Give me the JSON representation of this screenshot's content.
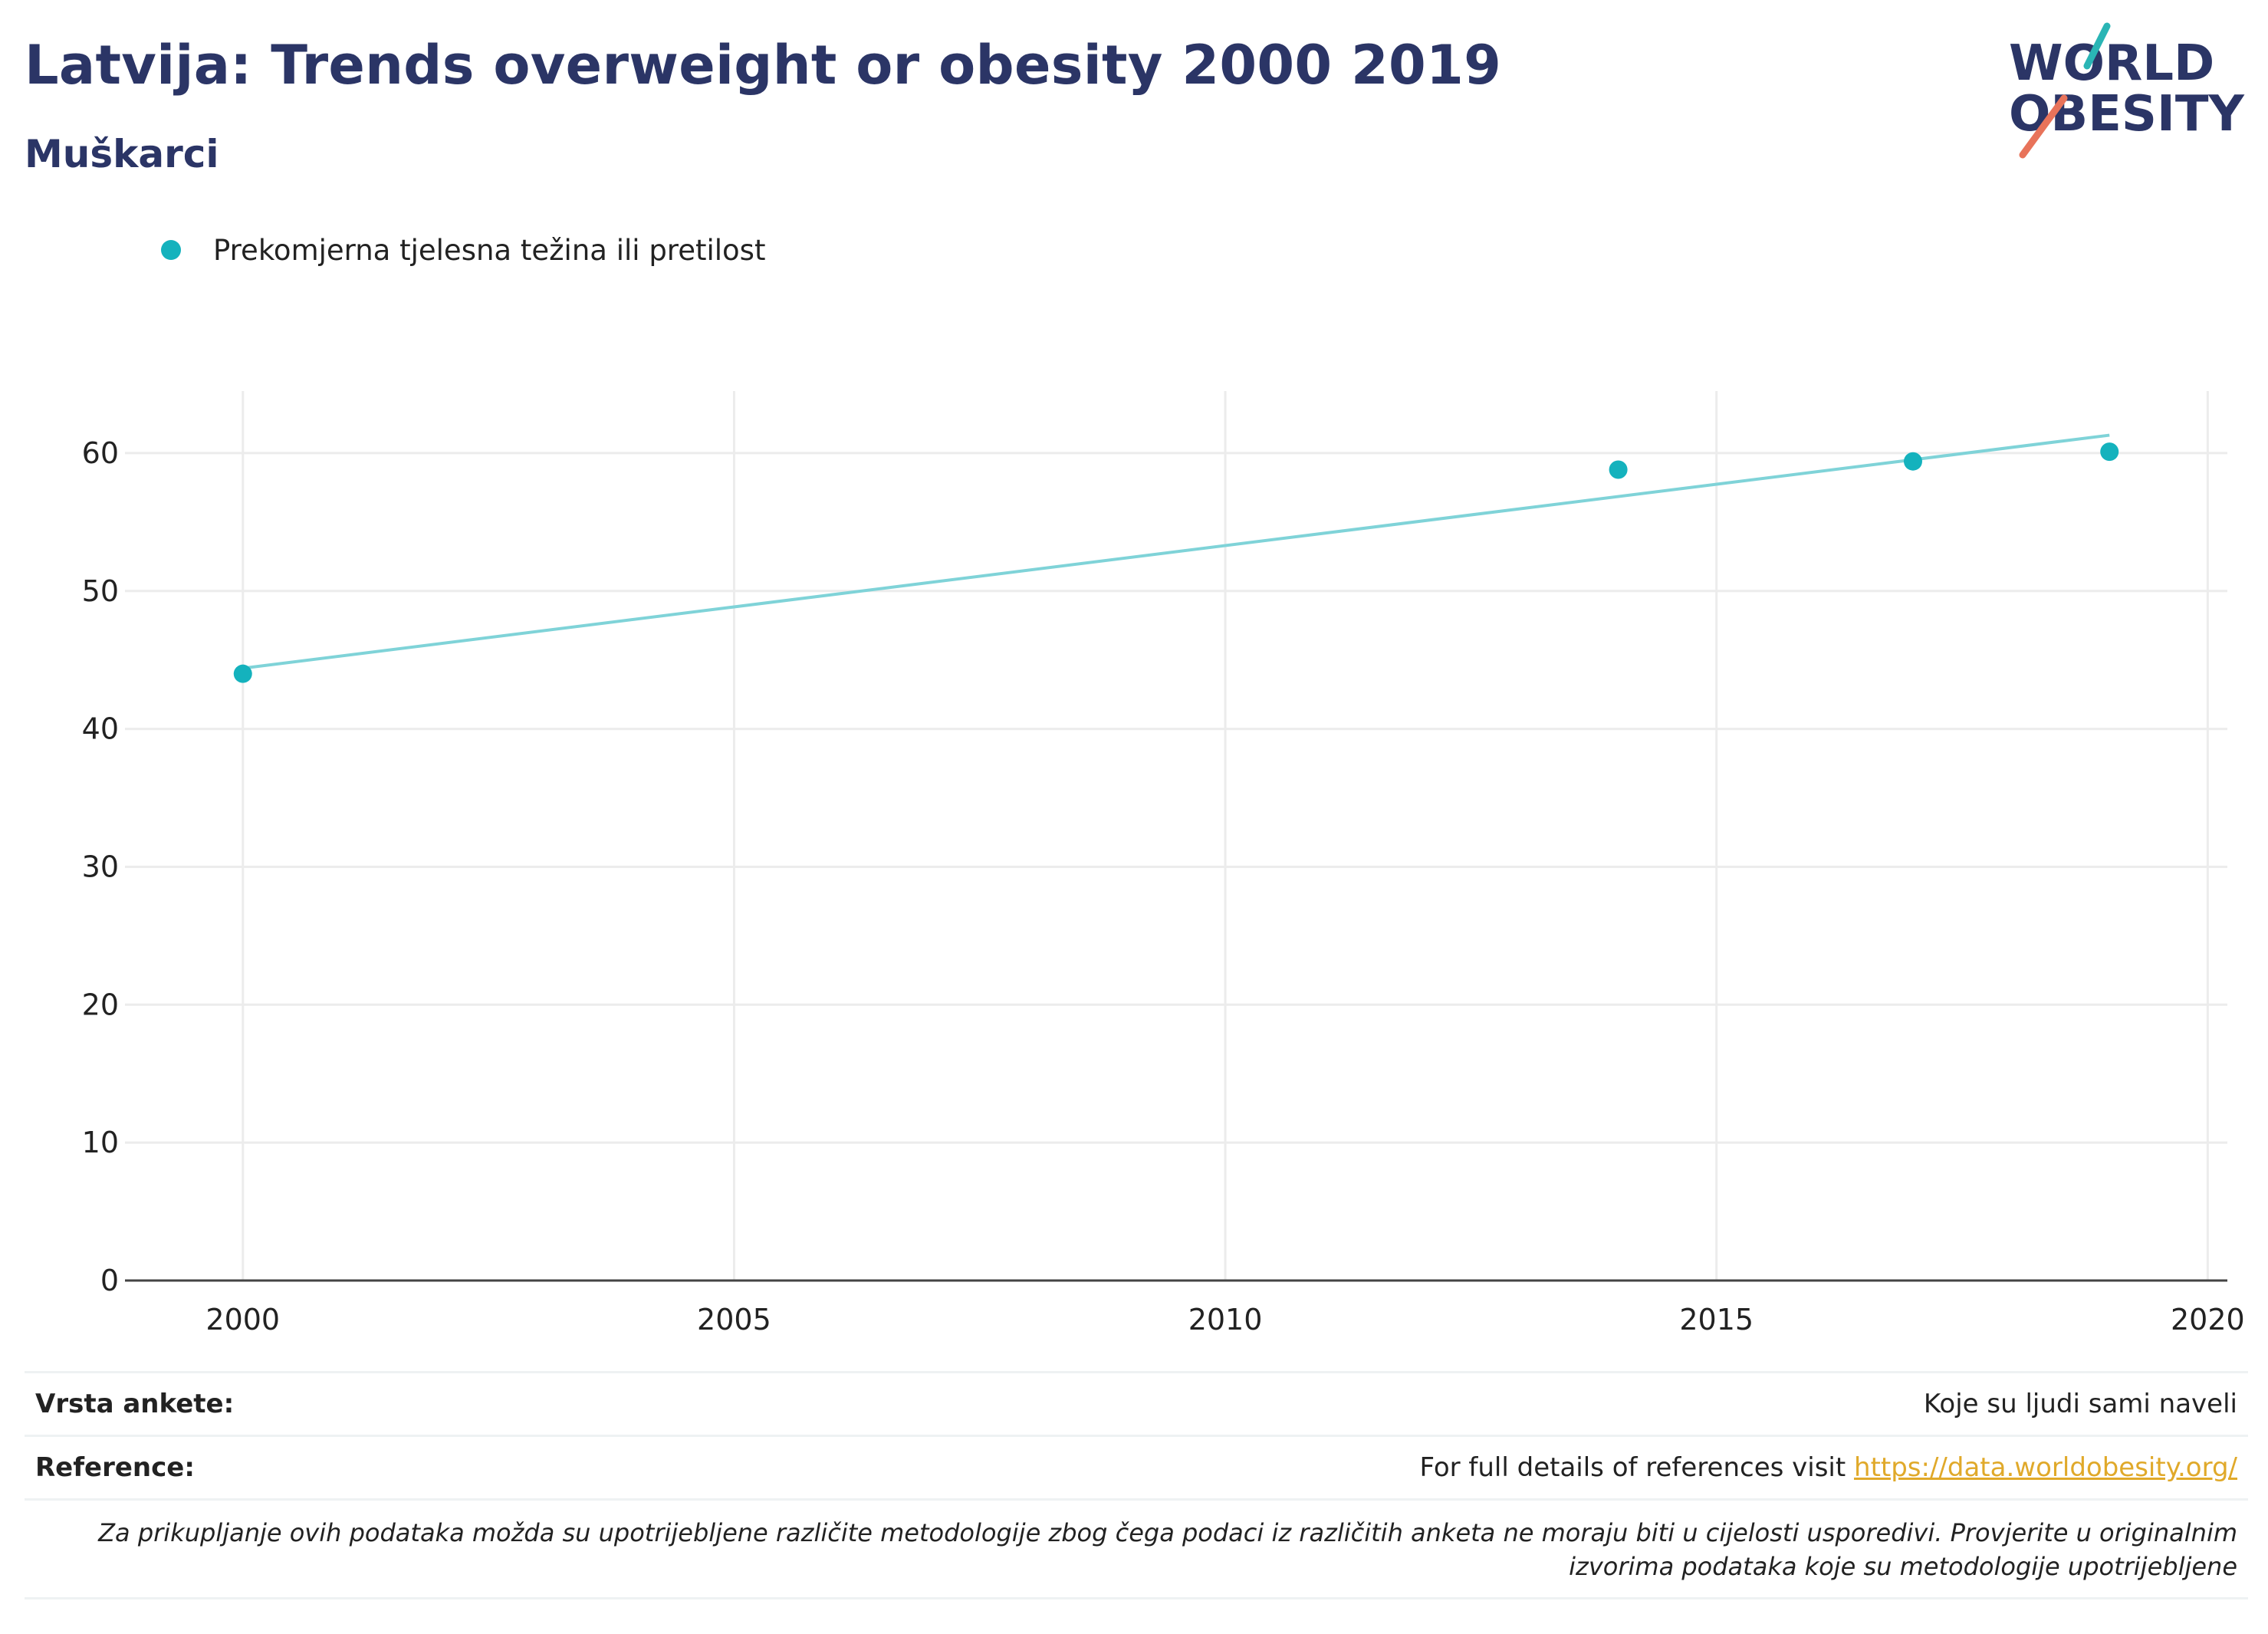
{
  "header": {
    "title": "Latvija: Trends overweight or obesity 2000 2019",
    "subtitle": "Muškarci"
  },
  "logo": {
    "line1": "WORLD",
    "line2": "OBESITY",
    "accent_teal": "#2ab5b5",
    "accent_coral": "#e8735a"
  },
  "legend": {
    "label": "Prekomjerna tjelesna težina ili pretilost"
  },
  "chart_data": {
    "type": "scatter",
    "x_ticks": [
      2000,
      2005,
      2010,
      2015,
      2020
    ],
    "y_ticks": [
      0,
      10,
      20,
      30,
      40,
      50,
      60
    ],
    "xlim": [
      1998.8,
      2020.2
    ],
    "ylim": [
      0,
      64.5
    ],
    "grid": true,
    "legend_position": "top-left",
    "series": [
      {
        "name": "Prekomjerna tjelesna težina ili pretilost",
        "color": "#14b2bd",
        "points": [
          {
            "x": 2000,
            "y": 44.0
          },
          {
            "x": 2014,
            "y": 58.8
          },
          {
            "x": 2017,
            "y": 59.4
          },
          {
            "x": 2019,
            "y": 60.1
          }
        ]
      }
    ],
    "trendline": {
      "color": "#7fd3d8",
      "from": {
        "x": 2000,
        "y": 44.4
      },
      "to": {
        "x": 2019,
        "y": 61.3
      }
    }
  },
  "footer": {
    "survey_label": "Vrsta ankete:",
    "survey_value": "Koje su ljudi sami naveli",
    "ref_label": "Reference:",
    "ref_text": "For full details of references visit ",
    "ref_link": "https://data.worldobesity.org/",
    "note": "Za prikupljanje ovih podataka možda su upotrijebljene različite metodologije zbog čega podaci iz različitih anketa ne moraju biti u cijelosti usporedivi. Provjerite u originalnim izvorima podataka koje su metodologije upotrijebljene"
  }
}
